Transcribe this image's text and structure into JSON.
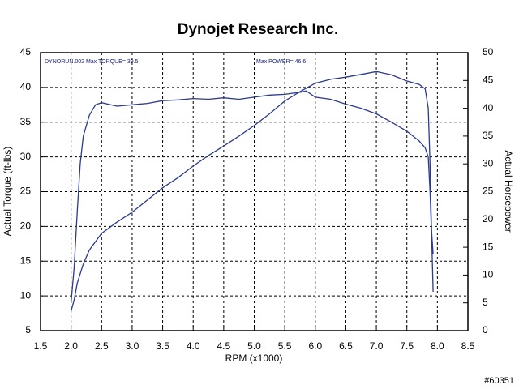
{
  "chart_data": {
    "type": "line",
    "title": "Dynojet Research Inc.",
    "xlabel": "RPM (x1000)",
    "ylabel": "Actual Torque (ft-lbs)",
    "y2label": "Actual Horsepower",
    "annotations": [
      "DYNORUN.002  Max TORQUE= 39.5",
      "Max POWER= 46.6",
      "#60351"
    ],
    "xlim": [
      1.5,
      8.5
    ],
    "xticks": [
      {
        "value": 1.5,
        "label": "1.5"
      },
      {
        "value": 2,
        "label": "2.0"
      },
      {
        "value": 2.5,
        "label": "2.5"
      },
      {
        "value": 3,
        "label": "3.0"
      },
      {
        "value": 3.5,
        "label": "3.5"
      },
      {
        "value": 4,
        "label": "4.0"
      },
      {
        "value": 4.5,
        "label": "4.5"
      },
      {
        "value": 5,
        "label": "5.0"
      },
      {
        "value": 5.5,
        "label": "5.5"
      },
      {
        "value": 6,
        "label": "6.0"
      },
      {
        "value": 6.5,
        "label": "6.5"
      },
      {
        "value": 7,
        "label": "7.0"
      },
      {
        "value": 7.5,
        "label": "7.5"
      },
      {
        "value": 8,
        "label": "8.0"
      },
      {
        "value": 8.5,
        "label": "8.5"
      }
    ],
    "ylim": [
      5,
      45
    ],
    "yticks": [
      5,
      10,
      15,
      20,
      25,
      30,
      35,
      40,
      45
    ],
    "y2lim": [
      0,
      50
    ],
    "y2ticks": [
      0,
      5,
      10,
      15,
      20,
      25,
      30,
      35,
      40,
      45,
      50
    ],
    "grid": true,
    "series": [
      {
        "color": "#2b3a8c",
        "x": [
          2.0,
          2.05,
          2.1,
          2.15,
          2.2,
          2.3,
          2.4,
          2.5,
          2.75,
          3.0,
          3.25,
          3.5,
          3.75,
          4.0,
          4.25,
          4.5,
          4.75,
          5.0,
          5.25,
          5.5,
          5.75,
          5.85,
          6.0,
          6.25,
          6.5,
          6.75,
          7.0,
          7.25,
          7.5,
          7.7,
          7.8,
          7.85,
          7.88,
          7.9,
          7.93
        ],
        "values": [
          9,
          14,
          22,
          29,
          33,
          36,
          37.5,
          37.8,
          37.3,
          37.5,
          37.7,
          38.1,
          38.2,
          38.4,
          38.3,
          38.5,
          38.3,
          38.6,
          38.9,
          39.0,
          39.3,
          39.5,
          38.6,
          38.3,
          37.6,
          37.0,
          36.2,
          35.0,
          33.7,
          32.3,
          31.3,
          30.0,
          25,
          20,
          16
        ]
      },
      {
        "color": "#2b3a8c",
        "axis": "y2",
        "x": [
          2.0,
          2.05,
          2.1,
          2.2,
          2.3,
          2.5,
          2.75,
          3.0,
          3.25,
          3.5,
          3.75,
          4.0,
          4.25,
          4.5,
          4.75,
          5.0,
          5.25,
          5.5,
          5.75,
          6.0,
          6.25,
          6.5,
          6.75,
          7.0,
          7.25,
          7.5,
          7.7,
          7.8,
          7.85,
          7.88,
          7.9,
          7.93
        ],
        "values": [
          3.5,
          5.5,
          8.5,
          12,
          14.5,
          17.5,
          19.5,
          21.3,
          23.5,
          25.7,
          27.5,
          29.6,
          31.5,
          33.2,
          35,
          36.9,
          39,
          41.3,
          43,
          44.5,
          45.2,
          45.6,
          46.1,
          46.6,
          46,
          44.9,
          44.3,
          43.5,
          40,
          30,
          20,
          7
        ]
      }
    ]
  }
}
